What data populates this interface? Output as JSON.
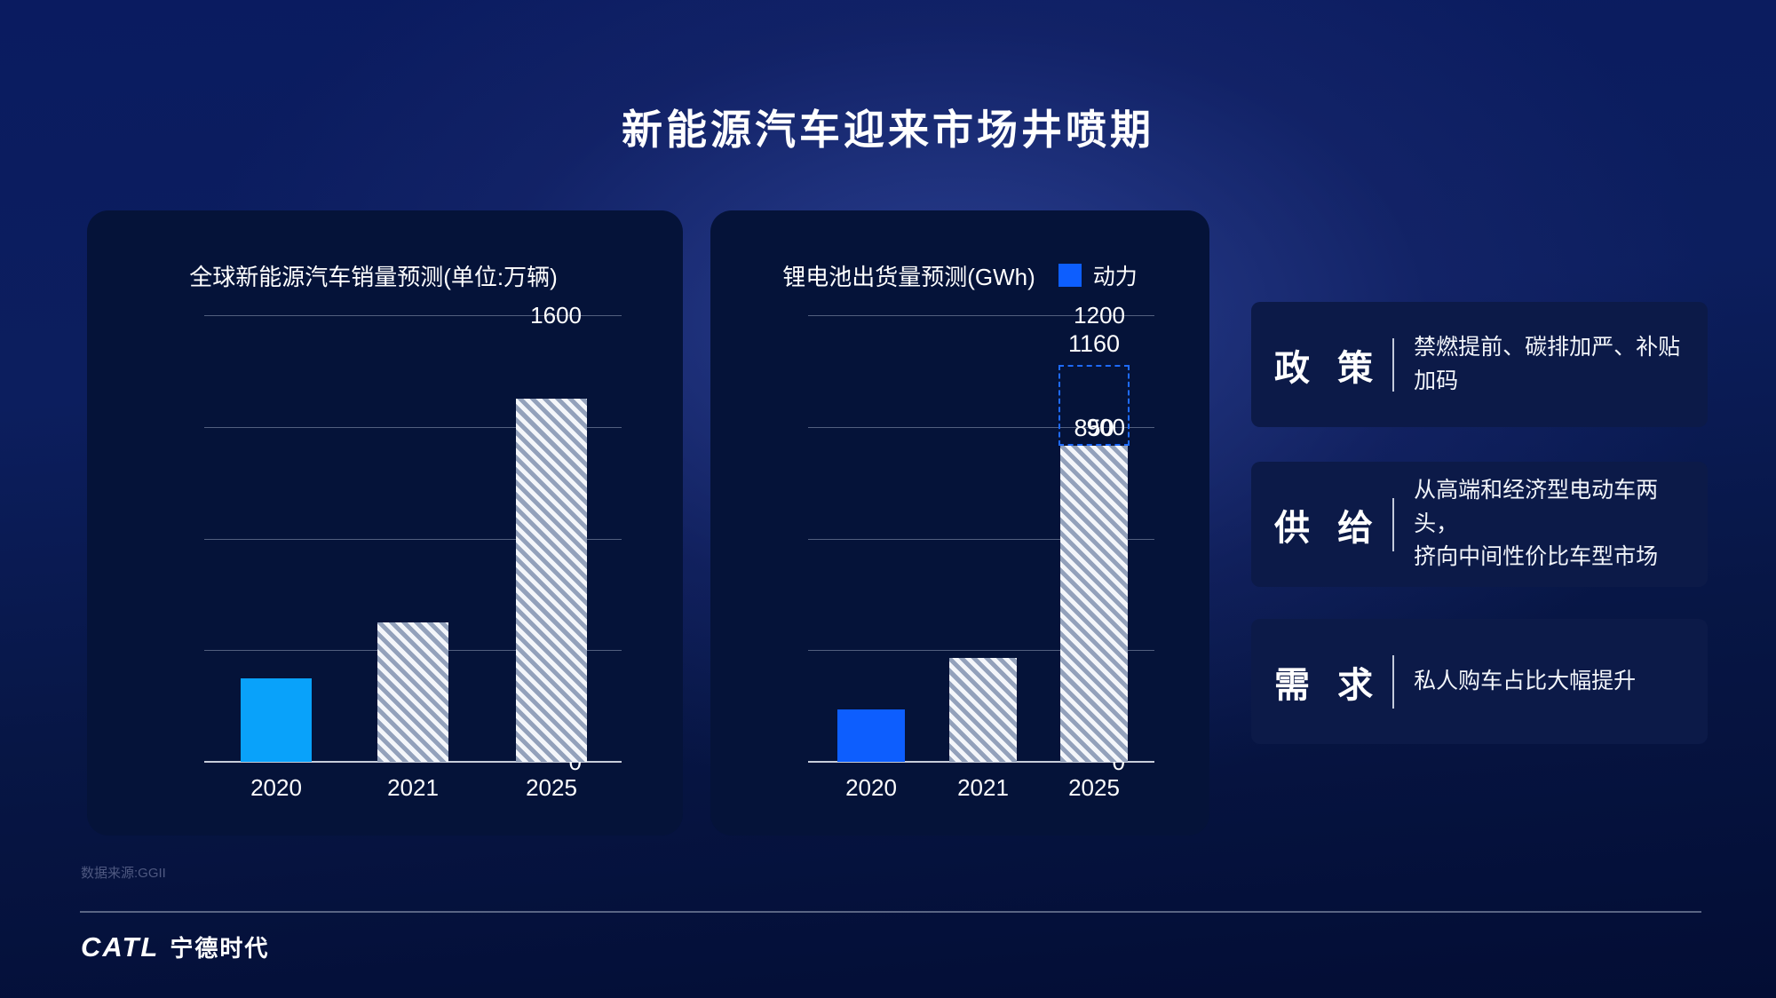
{
  "slide": {
    "title": "新能源汽车迎来市场井喷期"
  },
  "source_note": "数据来源:GGII",
  "footer": {
    "logo_catl": "CATL",
    "logo_cn": "宁德时代"
  },
  "colors": {
    "solid_bar_cyan": "#09a2fa",
    "solid_bar_blue": "#0d5efe",
    "legend_blue": "#0d5efe",
    "dashed_projection_blue": "#1e6bff",
    "hatch_base": "#93a1bb",
    "hatch_stripe": "#f4f6fa",
    "card_background": "#051339",
    "insight_box_background": "#0c1a48"
  },
  "insights": [
    {
      "heading": "政 策",
      "desc": "禁燃提前、碳排加严、补贴加码"
    },
    {
      "heading": "供 给",
      "desc": "从高端和经济型电动车两头，\n挤向中间性价比车型市场"
    },
    {
      "heading": "需 求",
      "desc": "私人购车占比大幅提升"
    }
  ],
  "chart_data": [
    {
      "type": "bar",
      "title": "全球新能源汽车销量预测(单位:万辆)",
      "categories": [
        "2020",
        "2021",
        "2025"
      ],
      "values": [
        300,
        500,
        1300
      ],
      "bar_styles": [
        "solid-cyan",
        "hatch",
        "hatch"
      ],
      "yticks": [
        0,
        400,
        800,
        1200,
        1600
      ],
      "ylim": [
        0,
        1600
      ],
      "grid": true,
      "legend": []
    },
    {
      "type": "bar",
      "title": "锂电池出货量预测(GWh)",
      "categories": [
        "2020",
        "2021",
        "2025"
      ],
      "values": [
        140,
        280,
        850
      ],
      "bar_styles": [
        "solid-blue",
        "hatch",
        "hatch"
      ],
      "yticks": [
        0,
        300,
        600,
        900,
        1200
      ],
      "ylim": [
        0,
        1200
      ],
      "grid": true,
      "legend": [
        {
          "label": "动力",
          "color": "#0d5efe"
        }
      ],
      "annotation": {
        "type": "dashed-projection",
        "category": "2025",
        "from": 850,
        "to": 1160,
        "from_label": "850",
        "to_label": "1160"
      }
    }
  ]
}
